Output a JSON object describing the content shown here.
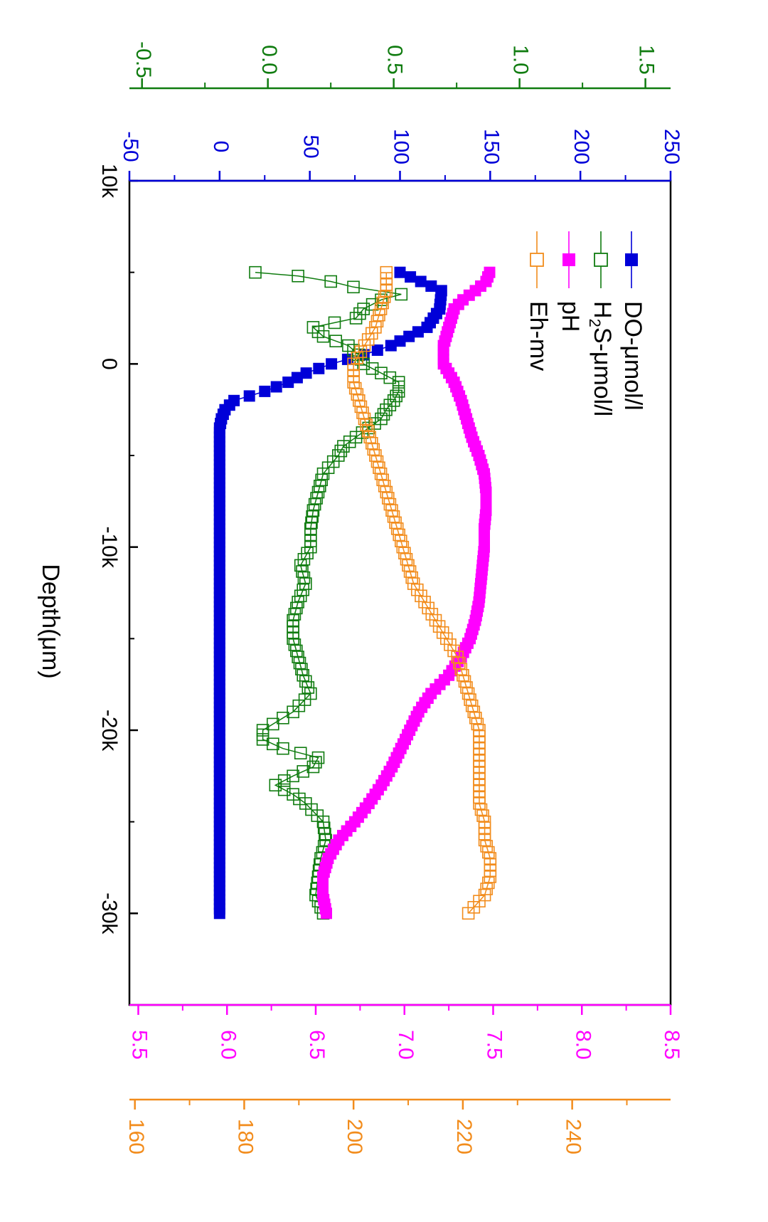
{
  "chart_data": {
    "type": "scatter",
    "orientation": "rotated-90-clockwise",
    "xlabel": "Depth(μm)",
    "x_tick_labels": [
      "10k",
      "0",
      "-10k",
      "-20k",
      "-30k"
    ],
    "x_ticks": [
      10000,
      0,
      -10000,
      -20000,
      -30000
    ],
    "xlim": [
      10000,
      -35000
    ],
    "axes": {
      "DO": {
        "tick_labels": [
          "-50",
          "0",
          "50",
          "100",
          "150",
          "200",
          "250"
        ],
        "ticks": [
          -50,
          0,
          50,
          100,
          150,
          200,
          250
        ],
        "range": [
          -50,
          250
        ],
        "color": "#0000d8"
      },
      "H2S": {
        "tick_labels": [
          "-0.5",
          "0.0",
          "0.5",
          "1.0",
          "1.5"
        ],
        "ticks": [
          -0.5,
          0,
          0.5,
          1.0,
          1.5
        ],
        "range": [
          -0.55,
          1.6
        ],
        "color": "#107c10"
      },
      "pH": {
        "tick_labels": [
          "5.5",
          "6.0",
          "6.5",
          "7.0",
          "7.5",
          "8.0",
          "8.5"
        ],
        "ticks": [
          5.5,
          6.0,
          6.5,
          7.0,
          7.5,
          8.0,
          8.5
        ],
        "range": [
          5.45,
          8.5
        ],
        "color": "#ff00ff"
      },
      "Eh": {
        "tick_labels": [
          "160",
          "180",
          "200",
          "220",
          "240"
        ],
        "ticks": [
          160,
          180,
          200,
          220,
          240
        ],
        "range": [
          159,
          258
        ],
        "color": "#f28c1c"
      }
    },
    "series": [
      {
        "name": "DO-μmol/l",
        "axis": "DO",
        "marker": "filled-square",
        "color": "#0000d8",
        "points": [
          [
            5000,
            100
          ],
          [
            4000,
            123
          ],
          [
            3000,
            122
          ],
          [
            2000,
            115
          ],
          [
            1000,
            95
          ],
          [
            500,
            80
          ],
          [
            0,
            62
          ],
          [
            -500,
            48
          ],
          [
            -1000,
            38
          ],
          [
            -1500,
            25
          ],
          [
            -2000,
            8
          ],
          [
            -2500,
            3
          ],
          [
            -3000,
            1
          ],
          [
            -3500,
            0
          ],
          [
            -5000,
            0
          ],
          [
            -10000,
            0
          ],
          [
            -15000,
            0
          ],
          [
            -20000,
            0
          ],
          [
            -25000,
            0
          ],
          [
            -30000,
            0
          ]
        ]
      },
      {
        "name": "H2S-μmol/l",
        "axis": "H2S",
        "marker": "open-square",
        "color": "#107c10",
        "points": [
          [
            5000,
            -0.05
          ],
          [
            4800,
            0.12
          ],
          [
            4500,
            0.25
          ],
          [
            4200,
            0.34
          ],
          [
            3800,
            0.53
          ],
          [
            3500,
            0.45
          ],
          [
            3000,
            0.38
          ],
          [
            2500,
            0.35
          ],
          [
            2000,
            0.18
          ],
          [
            1500,
            0.22
          ],
          [
            1000,
            0.32
          ],
          [
            500,
            0.36
          ],
          [
            0,
            0.38
          ],
          [
            -500,
            0.45
          ],
          [
            -1000,
            0.52
          ],
          [
            -1500,
            0.52
          ],
          [
            -2000,
            0.5
          ],
          [
            -2500,
            0.47
          ],
          [
            -3000,
            0.45
          ],
          [
            -3500,
            0.4
          ],
          [
            -4000,
            0.35
          ],
          [
            -4500,
            0.3
          ],
          [
            -5000,
            0.28
          ],
          [
            -6000,
            0.22
          ],
          [
            -7000,
            0.2
          ],
          [
            -8000,
            0.18
          ],
          [
            -9000,
            0.17
          ],
          [
            -10000,
            0.17
          ],
          [
            -11000,
            0.13
          ],
          [
            -12000,
            0.15
          ],
          [
            -13000,
            0.12
          ],
          [
            -14000,
            0.1
          ],
          [
            -15000,
            0.1
          ],
          [
            -16000,
            0.12
          ],
          [
            -17000,
            0.14
          ],
          [
            -18000,
            0.17
          ],
          [
            -19000,
            0.1
          ],
          [
            -20000,
            -0.02
          ],
          [
            -20500,
            -0.02
          ],
          [
            -21000,
            0.06
          ],
          [
            -21500,
            0.2
          ],
          [
            -22000,
            0.18
          ],
          [
            -22500,
            0.1
          ],
          [
            -23000,
            0.03
          ],
          [
            -23500,
            0.1
          ],
          [
            -24000,
            0.15
          ],
          [
            -25000,
            0.22
          ],
          [
            -26000,
            0.23
          ],
          [
            -27000,
            0.21
          ],
          [
            -28000,
            0.2
          ],
          [
            -29000,
            0.19
          ],
          [
            -30000,
            0.22
          ]
        ]
      },
      {
        "name": "pH",
        "axis": "pH",
        "marker": "filled-square",
        "color": "#ff00ff",
        "points": [
          [
            5000,
            7.48
          ],
          [
            4500,
            7.46
          ],
          [
            4000,
            7.4
          ],
          [
            3500,
            7.33
          ],
          [
            3000,
            7.28
          ],
          [
            2000,
            7.25
          ],
          [
            1000,
            7.22
          ],
          [
            0,
            7.22
          ],
          [
            -1000,
            7.28
          ],
          [
            -2000,
            7.32
          ],
          [
            -3000,
            7.35
          ],
          [
            -4000,
            7.38
          ],
          [
            -5000,
            7.42
          ],
          [
            -6000,
            7.45
          ],
          [
            -7000,
            7.46
          ],
          [
            -8000,
            7.46
          ],
          [
            -9000,
            7.45
          ],
          [
            -10000,
            7.45
          ],
          [
            -11000,
            7.44
          ],
          [
            -12000,
            7.43
          ],
          [
            -13000,
            7.42
          ],
          [
            -14000,
            7.4
          ],
          [
            -15000,
            7.37
          ],
          [
            -16000,
            7.32
          ],
          [
            -17000,
            7.25
          ],
          [
            -18000,
            7.15
          ],
          [
            -19000,
            7.08
          ],
          [
            -20000,
            7.03
          ],
          [
            -21000,
            6.98
          ],
          [
            -22000,
            6.93
          ],
          [
            -23000,
            6.87
          ],
          [
            -24000,
            6.8
          ],
          [
            -25000,
            6.72
          ],
          [
            -26000,
            6.63
          ],
          [
            -27000,
            6.57
          ],
          [
            -28000,
            6.54
          ],
          [
            -29000,
            6.54
          ],
          [
            -30000,
            6.56
          ]
        ]
      },
      {
        "name": "Eh-mv",
        "axis": "Eh",
        "marker": "open-square",
        "color": "#f28c1c",
        "points": [
          [
            5000,
            206
          ],
          [
            4000,
            206
          ],
          [
            3000,
            205
          ],
          [
            2000,
            204
          ],
          [
            1000,
            202
          ],
          [
            0,
            200
          ],
          [
            -1000,
            200
          ],
          [
            -2000,
            201
          ],
          [
            -3000,
            202
          ],
          [
            -4000,
            203
          ],
          [
            -5000,
            204
          ],
          [
            -6000,
            205
          ],
          [
            -7000,
            206
          ],
          [
            -8000,
            207
          ],
          [
            -9000,
            208
          ],
          [
            -10000,
            209
          ],
          [
            -11000,
            210
          ],
          [
            -12000,
            211
          ],
          [
            -13000,
            213
          ],
          [
            -14000,
            215
          ],
          [
            -15000,
            217
          ],
          [
            -16000,
            219
          ],
          [
            -17000,
            220
          ],
          [
            -18000,
            221
          ],
          [
            -19000,
            222
          ],
          [
            -20000,
            223
          ],
          [
            -21000,
            223
          ],
          [
            -22000,
            223
          ],
          [
            -23000,
            223
          ],
          [
            -24000,
            223
          ],
          [
            -25000,
            224
          ],
          [
            -26000,
            224
          ],
          [
            -27000,
            225
          ],
          [
            -28000,
            225
          ],
          [
            -29000,
            224
          ],
          [
            -30000,
            221
          ]
        ]
      }
    ],
    "legend": {
      "placement": "top-right",
      "entries": [
        {
          "series": "DO",
          "text": "DO-μmol/l",
          "color": "#0000d8",
          "marker": "filled-square"
        },
        {
          "series": "H2S",
          "text": "S-μmol/l",
          "prefix": "H",
          "subscript": "2",
          "color": "#107c10",
          "marker": "open-square"
        },
        {
          "series": "pH",
          "text": "pH",
          "color": "#ff00ff",
          "marker": "filled-square"
        },
        {
          "series": "Eh",
          "text": "Eh-mv",
          "color": "#f28c1c",
          "marker": "open-square"
        }
      ]
    }
  }
}
